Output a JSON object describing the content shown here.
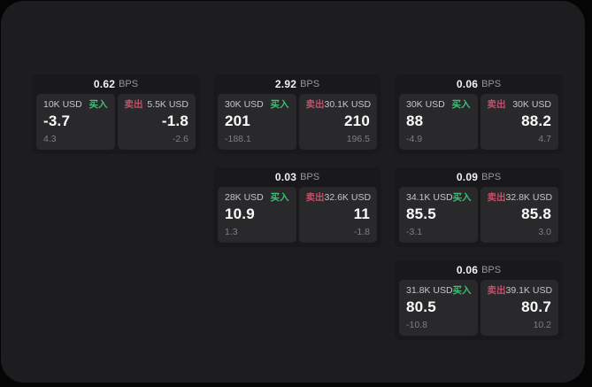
{
  "colors": {
    "buy": "#3fbf73",
    "sell": "#c3506a",
    "panel": "#1d1d1f",
    "card": "#19191b",
    "tile": "#29292b"
  },
  "cards": [
    {
      "bps": "0.62",
      "unit": "BPS",
      "col": 0,
      "row": 0,
      "buy": {
        "amount": "10K USD",
        "badge": "买入",
        "price": "-3.7",
        "delta": "4.3"
      },
      "sell": {
        "badge": "卖出",
        "amount": "5.5K USD",
        "price": "-1.8",
        "delta": "-2.6"
      }
    },
    {
      "bps": "2.92",
      "unit": "BPS",
      "col": 1,
      "row": 0,
      "buy": {
        "amount": "30K USD",
        "badge": "买入",
        "price": "201",
        "delta": "-188.1"
      },
      "sell": {
        "badge": "卖出",
        "amount": "30.1K USD",
        "price": "210",
        "delta": "196.5"
      }
    },
    {
      "bps": "0.06",
      "unit": "BPS",
      "col": 2,
      "row": 0,
      "buy": {
        "amount": "30K USD",
        "badge": "买入",
        "price": "88",
        "delta": "-4.9"
      },
      "sell": {
        "badge": "卖出",
        "amount": "30K USD",
        "price": "88.2",
        "delta": "4.7"
      }
    },
    {
      "bps": "0.03",
      "unit": "BPS",
      "col": 1,
      "row": 1,
      "buy": {
        "amount": "28K USD",
        "badge": "买入",
        "price": "10.9",
        "delta": "1.3"
      },
      "sell": {
        "badge": "卖出",
        "amount": "32.6K USD",
        "price": "11",
        "delta": "-1.8"
      }
    },
    {
      "bps": "0.09",
      "unit": "BPS",
      "col": 2,
      "row": 1,
      "buy": {
        "amount": "34.1K USD",
        "badge": "买入",
        "price": "85.5",
        "delta": "-3.1"
      },
      "sell": {
        "badge": "卖出",
        "amount": "32.8K USD",
        "price": "85.8",
        "delta": "3.0"
      }
    },
    {
      "bps": "0.06",
      "unit": "BPS",
      "col": 2,
      "row": 2,
      "buy": {
        "amount": "31.8K USD",
        "badge": "买入",
        "price": "80.5",
        "delta": "-10.8"
      },
      "sell": {
        "badge": "卖出",
        "amount": "39.1K USD",
        "price": "80.7",
        "delta": "10.2"
      }
    }
  ]
}
